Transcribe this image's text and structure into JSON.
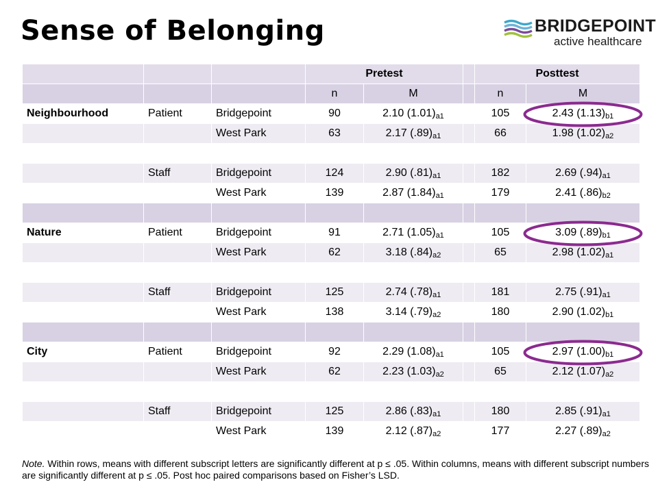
{
  "page": {
    "title": "Sense of Belonging"
  },
  "logo": {
    "brand": "BRIDGEPOINT",
    "tagline": "active healthcare",
    "icon": "wave-stripes-icon"
  },
  "table": {
    "group_headers": {
      "pretest": "Pretest",
      "posttest": "Posttest"
    },
    "col_headers": {
      "pre_n": "n",
      "pre_m": "M",
      "post_n": "n",
      "post_m": "M"
    },
    "rows": [
      {
        "row_type": "data",
        "section": "Neighbourhood",
        "group": "Patient",
        "site": "Bridgepoint",
        "pre_n": "90",
        "pre_m": "2.10 (1.01)",
        "pre_sub": "a1",
        "post_n": "105",
        "post_m": "2.43 (1.13)",
        "post_sub": "b1"
      },
      {
        "row_type": "data",
        "section": "",
        "group": "",
        "site": "West Park",
        "pre_n": "63",
        "pre_m": "2.17 (.89)",
        "pre_sub": "a1",
        "post_n": "66",
        "post_m": "1.98 (1.02)",
        "post_sub": "a2"
      },
      {
        "row_type": "blank"
      },
      {
        "row_type": "data",
        "section": "",
        "group": "Staff",
        "site": "Bridgepoint",
        "pre_n": "124",
        "pre_m": "2.90 (.81)",
        "pre_sub": "a1",
        "post_n": "182",
        "post_m": "2.69 (.94)",
        "post_sub": "a1"
      },
      {
        "row_type": "data",
        "section": "",
        "group": "",
        "site": "West Park",
        "pre_n": "139",
        "pre_m": "2.87 (1.84)",
        "pre_sub": "a1",
        "post_n": "179",
        "post_m": "2.41 (.86)",
        "post_sub": "b2"
      },
      {
        "row_type": "separator"
      },
      {
        "row_type": "data",
        "section": "Nature",
        "group": "Patient",
        "site": "Bridgepoint",
        "pre_n": "91",
        "pre_m": "2.71 (1.05)",
        "pre_sub": "a1",
        "post_n": "105",
        "post_m": "3.09 (.89)",
        "post_sub": "b1"
      },
      {
        "row_type": "data",
        "section": "",
        "group": "",
        "site": "West Park",
        "pre_n": "62",
        "pre_m": "3.18 (.84)",
        "pre_sub": "a2",
        "post_n": "65",
        "post_m": "2.98 (1.02)",
        "post_sub": "a1"
      },
      {
        "row_type": "blank"
      },
      {
        "row_type": "data",
        "section": "",
        "group": "Staff",
        "site": "Bridgepoint",
        "pre_n": "125",
        "pre_m": "2.74 (.78)",
        "pre_sub": "a1",
        "post_n": "181",
        "post_m": "2.75 (.91)",
        "post_sub": "a1"
      },
      {
        "row_type": "data",
        "section": "",
        "group": "",
        "site": "West Park",
        "pre_n": "138",
        "pre_m": "3.14 (.79)",
        "pre_sub": "a2",
        "post_n": "180",
        "post_m": "2.90 (1.02)",
        "post_sub": "b1"
      },
      {
        "row_type": "separator"
      },
      {
        "row_type": "data",
        "section": "City",
        "group": "Patient",
        "site": "Bridgepoint",
        "pre_n": "92",
        "pre_m": "2.29 (1.08)",
        "pre_sub": "a1",
        "post_n": "105",
        "post_m": "2.97 (1.00)",
        "post_sub": "b1"
      },
      {
        "row_type": "data",
        "section": "",
        "group": "",
        "site": "West Park",
        "pre_n": "62",
        "pre_m": "2.23 (1.03)",
        "pre_sub": "a2",
        "post_n": "65",
        "post_m": "2.12 (1.07)",
        "post_sub": "a2"
      },
      {
        "row_type": "blank"
      },
      {
        "row_type": "data",
        "section": "",
        "group": "Staff",
        "site": "Bridgepoint",
        "pre_n": "125",
        "pre_m": "2.86 (.83)",
        "pre_sub": "a1",
        "post_n": "180",
        "post_m": "2.85 (.91)",
        "post_sub": "a1"
      },
      {
        "row_type": "data",
        "section": "",
        "group": "",
        "site": "West Park",
        "pre_n": "139",
        "pre_m": "2.12 (.87)",
        "pre_sub": "a2",
        "post_n": "177",
        "post_m": "2.27 (.89)",
        "post_sub": "a2"
      }
    ],
    "highlight_color": "#8b2a8f"
  },
  "note": {
    "lead": "Note.",
    "text": " Within rows, means with different subscript letters are significantly different at p ≤ .05. Within columns, means with different subscript numbers are significantly different at p ≤ .05. Post hoc paired comparisons based on Fisher’s LSD."
  }
}
